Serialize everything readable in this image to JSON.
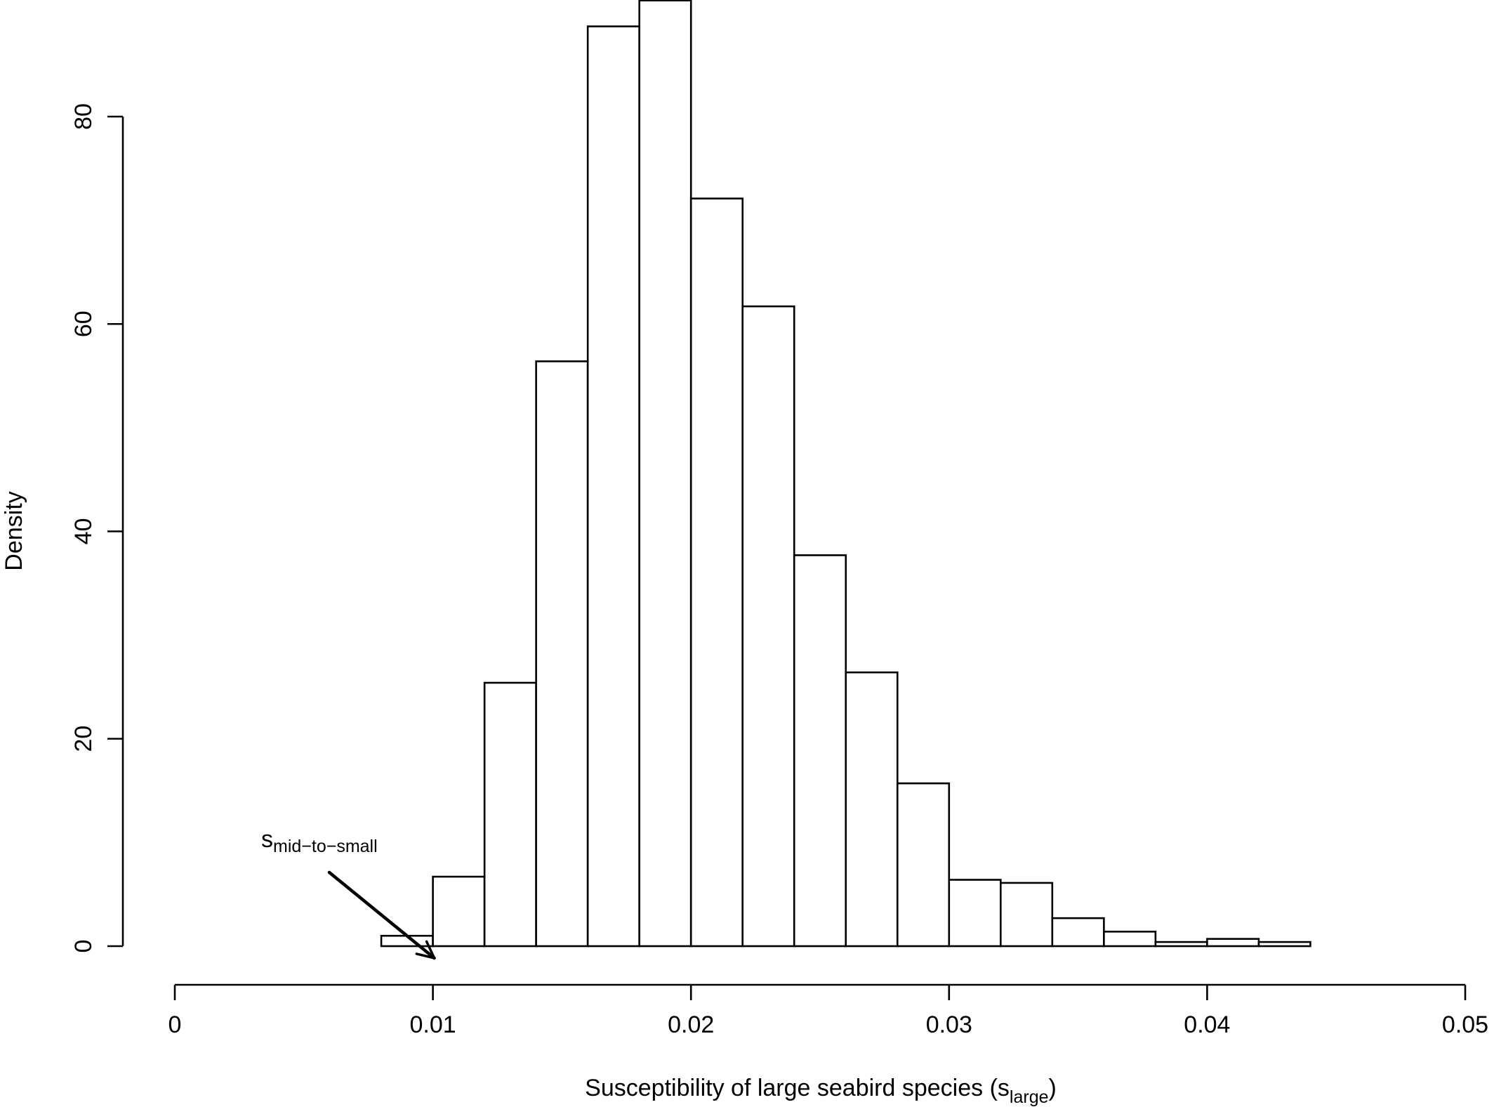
{
  "chart_data": {
    "type": "bar",
    "histogram": true,
    "bin_width": 0.002,
    "bins": [
      {
        "x0": 0.008,
        "x1": 0.01,
        "density": 1.0
      },
      {
        "x0": 0.01,
        "x1": 0.012,
        "density": 6.7
      },
      {
        "x0": 0.012,
        "x1": 0.014,
        "density": 25.4
      },
      {
        "x0": 0.014,
        "x1": 0.016,
        "density": 56.4
      },
      {
        "x0": 0.016,
        "x1": 0.018,
        "density": 88.7
      },
      {
        "x0": 0.018,
        "x1": 0.02,
        "density": 91.2
      },
      {
        "x0": 0.02,
        "x1": 0.022,
        "density": 72.1
      },
      {
        "x0": 0.022,
        "x1": 0.024,
        "density": 61.7
      },
      {
        "x0": 0.024,
        "x1": 0.026,
        "density": 37.7
      },
      {
        "x0": 0.026,
        "x1": 0.028,
        "density": 26.4
      },
      {
        "x0": 0.028,
        "x1": 0.03,
        "density": 15.7
      },
      {
        "x0": 0.03,
        "x1": 0.032,
        "density": 6.4
      },
      {
        "x0": 0.032,
        "x1": 0.034,
        "density": 6.1
      },
      {
        "x0": 0.034,
        "x1": 0.036,
        "density": 2.7
      },
      {
        "x0": 0.036,
        "x1": 0.038,
        "density": 1.4
      },
      {
        "x0": 0.038,
        "x1": 0.04,
        "density": 0.4
      },
      {
        "x0": 0.04,
        "x1": 0.042,
        "density": 0.7
      },
      {
        "x0": 0.042,
        "x1": 0.044,
        "density": 0.4
      }
    ],
    "xlabel": {
      "main": "Susceptibility of large seabird species (s",
      "subscript": "large",
      "close": ")"
    },
    "ylabel": "Density",
    "xlim": [
      0,
      0.05
    ],
    "ylim": [
      0,
      80
    ],
    "x_ticks": [
      {
        "value": 0,
        "label": "0"
      },
      {
        "value": 0.01,
        "label": "0.01"
      },
      {
        "value": 0.02,
        "label": "0.02"
      },
      {
        "value": 0.03,
        "label": "0.03"
      },
      {
        "value": 0.04,
        "label": "0.04"
      },
      {
        "value": 0.05,
        "label": "0.05"
      }
    ],
    "y_ticks": [
      {
        "value": 0,
        "label": "0"
      },
      {
        "value": 20,
        "label": "20"
      },
      {
        "value": 40,
        "label": "40"
      },
      {
        "value": 60,
        "label": "60"
      },
      {
        "value": 80,
        "label": "80"
      }
    ],
    "annotation": {
      "main": "s",
      "subscript": "mid−to−small",
      "points_to_x": 0.01
    },
    "colors": {
      "bar_fill": "#ffffff",
      "stroke": "#000000",
      "background": "#ffffff"
    },
    "grid": false,
    "legend": "none"
  }
}
